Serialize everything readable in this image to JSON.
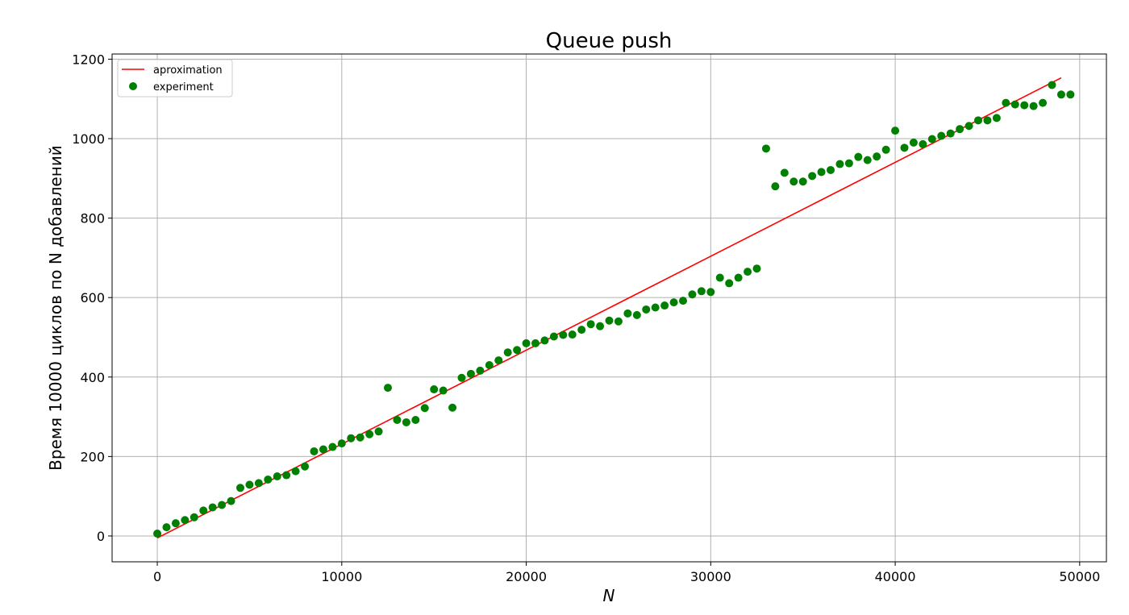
{
  "chart_data": {
    "type": "scatter",
    "title": "Queue push",
    "xlabel": "N",
    "ylabel": "Время 10000 циклов по N добавлений",
    "xlim": [
      -2450,
      51450
    ],
    "ylim": [
      -65,
      1213
    ],
    "xticks": [
      0,
      10000,
      20000,
      30000,
      40000,
      50000
    ],
    "yticks": [
      0,
      200,
      400,
      600,
      800,
      1000,
      1200
    ],
    "grid": true,
    "legend_position": "top-left",
    "colors": {
      "line": "#ff0000",
      "points": "#008000",
      "grid": "#b0b0b0"
    },
    "series": [
      {
        "name": "aproximation",
        "kind": "line",
        "x": [
          0,
          49000
        ],
        "y": [
          -5,
          1153
        ]
      },
      {
        "name": "experiment",
        "kind": "scatter",
        "x": [
          0,
          500,
          1000,
          1500,
          2000,
          2500,
          3000,
          3500,
          4000,
          4500,
          5000,
          5500,
          6000,
          6500,
          7000,
          7500,
          8000,
          8500,
          9000,
          9500,
          10000,
          10500,
          11000,
          11500,
          12000,
          12500,
          13000,
          13500,
          14000,
          14500,
          15000,
          15500,
          16000,
          16500,
          17000,
          17500,
          18000,
          18500,
          19000,
          19500,
          20000,
          20500,
          21000,
          21500,
          22000,
          22500,
          23000,
          23500,
          24000,
          24500,
          25000,
          25500,
          26000,
          26500,
          27000,
          27500,
          28000,
          28500,
          29000,
          29500,
          30000,
          30500,
          31000,
          31500,
          32000,
          32500,
          33000,
          33500,
          34000,
          34500,
          35000,
          35500,
          36000,
          36500,
          37000,
          37500,
          38000,
          38500,
          39000,
          39500,
          40000,
          40500,
          41000,
          41500,
          42000,
          42500,
          43000,
          43500,
          44000,
          44500,
          45000,
          45500,
          46000,
          46500,
          47000,
          47500,
          48000,
          48500,
          49000,
          49500
        ],
        "y": [
          6,
          22,
          32,
          40,
          47,
          64,
          72,
          78,
          88,
          121,
          129,
          133,
          142,
          150,
          153,
          163,
          175,
          213,
          218,
          224,
          233,
          246,
          248,
          256,
          263,
          373,
          292,
          286,
          292,
          322,
          369,
          366,
          323,
          398,
          408,
          416,
          430,
          442,
          462,
          468,
          485,
          485,
          492,
          502,
          506,
          507,
          519,
          533,
          528,
          542,
          540,
          560,
          556,
          570,
          575,
          580,
          588,
          592,
          608,
          616,
          614,
          650,
          636,
          650,
          665,
          673,
          975,
          880,
          914,
          892,
          892,
          906,
          916,
          921,
          936,
          938,
          954,
          946,
          955,
          972,
          1020,
          977,
          990,
          986,
          999,
          1007,
          1013,
          1024,
          1032,
          1046,
          1046,
          1052,
          1090,
          1086,
          1084,
          1082,
          1090,
          1135,
          1111,
          1111
        ]
      }
    ]
  }
}
